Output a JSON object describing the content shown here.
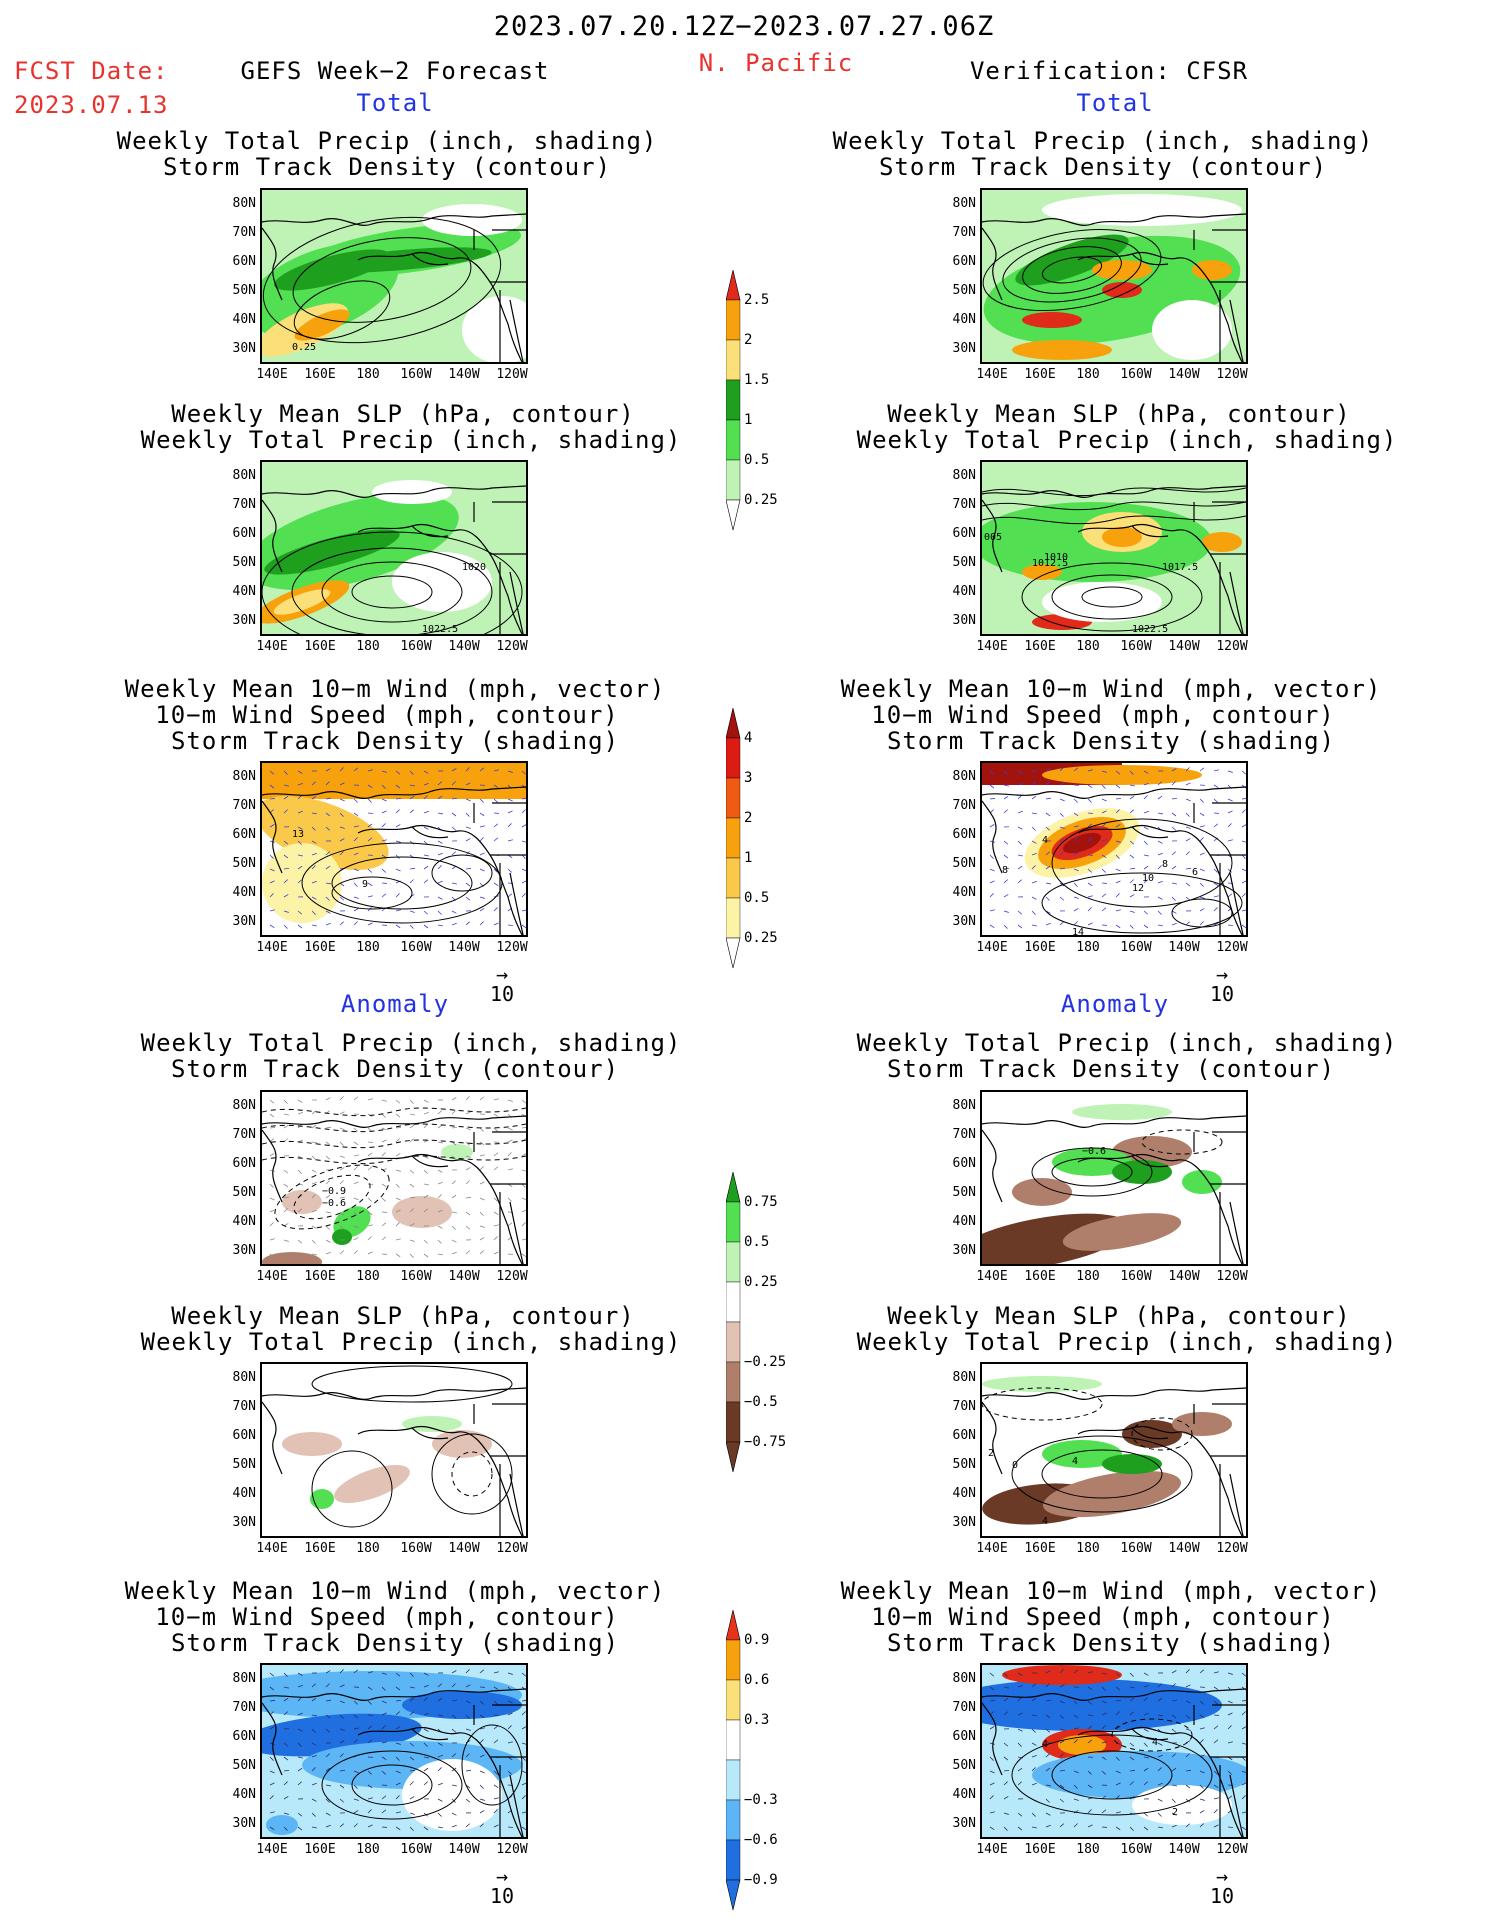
{
  "header": {
    "date_range": "2023.07.20.12Z−2023.07.27.06Z",
    "fcst_label": "FCST Date:",
    "fcst_date": "2023.07.13",
    "left_title": "GEFS Week−2 Forecast",
    "region": "N. Pacific",
    "right_title": "Verification: CFSR"
  },
  "sections": {
    "total": "Total",
    "anomaly": "Anomaly"
  },
  "titles": {
    "precip_std": [
      "Weekly Total Precip (inch, shading)",
      "Storm Track Density (contour)"
    ],
    "slp_precip": [
      "Weekly Mean SLP (hPa, contour)",
      "Weekly Total Precip (inch, shading)"
    ],
    "wind_std": [
      "Weekly Mean 10−m Wind (mph, vector)",
      "10−m Wind Speed (mph, contour)",
      "Storm Track Density (shading)"
    ]
  },
  "axes": {
    "lat_labels": [
      "80N",
      "70N",
      "60N",
      "50N",
      "40N",
      "30N"
    ],
    "lon_labels": [
      "140E",
      "160E",
      "180",
      "160W",
      "140W",
      "120W"
    ]
  },
  "vector_ref": "10",
  "contour_labels": {
    "fcst_precip_total": [
      "0.25"
    ],
    "fcst_slp_total": [
      "1020",
      "1022.5"
    ],
    "ver_slp_total": [
      "005",
      "1012.5",
      "1017.5",
      "1010",
      "1022.5"
    ],
    "fcst_wind_total": [
      "9",
      "13"
    ],
    "ver_wind_total": [
      "4",
      "8",
      "10",
      "12",
      "14",
      "8",
      "6"
    ],
    "fcst_precip_anom": [
      "−0.9",
      "−0.6"
    ],
    "ver_precip_anom": [
      "−0.6"
    ],
    "ver_slp_anom": [
      "2",
      "0",
      "4",
      "4"
    ],
    "ver_wind_anom": [
      "4",
      "4",
      "2"
    ]
  },
  "colorbars": {
    "precip_total": {
      "labels": [
        "2.5",
        "2",
        "1.5",
        "1",
        "0.5",
        "0.25"
      ],
      "colors": [
        "#e02a1a",
        "#f7a20c",
        "#fbe07a",
        "#1ea01e",
        "#52df52",
        "#bff3b5"
      ]
    },
    "storm_total": {
      "labels": [
        "4",
        "3",
        "2",
        "1",
        "0.5",
        "0.25"
      ],
      "colors": [
        "#a3130e",
        "#dc1c12",
        "#f05a12",
        "#f7a20c",
        "#fbc94a",
        "#fdf3a6"
      ]
    },
    "precip_anom": {
      "labels": [
        "0.75",
        "0.5",
        "0.25",
        "−0.25",
        "−0.5",
        "−0.75"
      ],
      "colors": [
        "#1ea01e",
        "#52df52",
        "#bff3b5",
        "#ffffff",
        "#e2c2b5",
        "#b07f6c",
        "#6a3a26"
      ]
    },
    "storm_anom": {
      "labels": [
        "0.9",
        "0.6",
        "0.3",
        "−0.3",
        "−0.6",
        "−0.9"
      ],
      "colors": [
        "#e8321a",
        "#f7a20c",
        "#fbe07a",
        "#ffffff",
        "#b7e9fb",
        "#5cb5f5",
        "#1f6fe0"
      ]
    },
    "fills": {
      "light_green": "#bff3b5",
      "mid_green": "#52df52",
      "dark_green": "#1ea01e",
      "yellow": "#fbe07a",
      "orange": "#f7a20c",
      "red": "#e02a1a",
      "dark_red": "#a3130e",
      "light_yellow": "#fdf3a6",
      "light_orange": "#fbc94a",
      "light_brown": "#e2c2b5",
      "mid_brown": "#b07f6c",
      "dark_brown": "#6a3a26",
      "light_blue": "#b7e9fb",
      "mid_blue": "#5cb5f5",
      "dark_blue": "#1f6fe0",
      "vector_blue": "#3b3bd9"
    }
  }
}
